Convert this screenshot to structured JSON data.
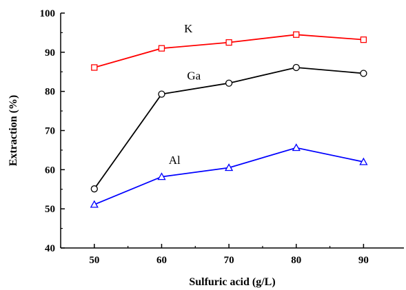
{
  "chart_data": {
    "type": "line",
    "xlabel": "Sulfuric acid (g/L)",
    "ylabel": "Extraction (%)",
    "x": [
      50,
      60,
      70,
      80,
      90
    ],
    "x_ticks": [
      "50",
      "60",
      "70",
      "80",
      "90"
    ],
    "y_ticks": [
      "40",
      "50",
      "60",
      "70",
      "80",
      "90",
      "100"
    ],
    "xlim": [
      45,
      96
    ],
    "ylim": [
      40,
      100
    ],
    "grid": false,
    "series": [
      {
        "name": "K",
        "color": "#ff0000",
        "marker": "square",
        "values": [
          86.1,
          91.0,
          92.5,
          94.5,
          93.2
        ]
      },
      {
        "name": "Ga",
        "color": "#000000",
        "marker": "circle",
        "values": [
          55.1,
          79.3,
          82.1,
          86.1,
          84.6
        ]
      },
      {
        "name": "Al",
        "color": "#0000ff",
        "marker": "triangle",
        "values": [
          51.1,
          58.2,
          60.5,
          65.6,
          62.0
        ]
      }
    ]
  }
}
